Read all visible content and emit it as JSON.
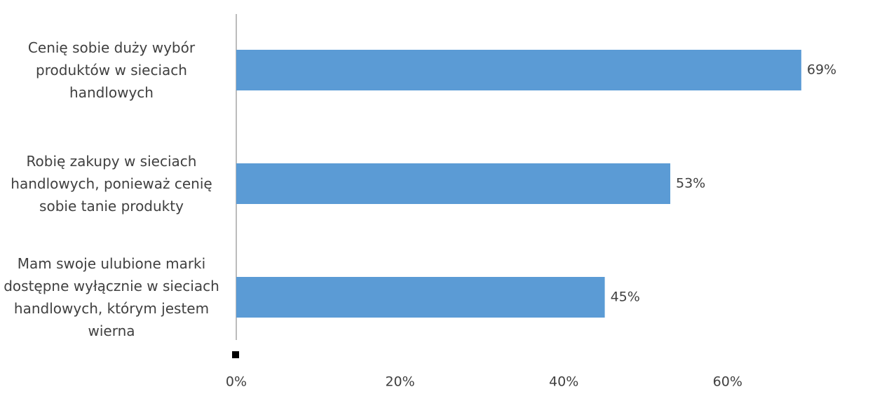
{
  "chart_data": {
    "type": "barh",
    "categories": [
      "Cenię sobie duży wybór produktów w sieciach handlowych",
      "Robię zakupy w sieciach handlowych, ponieważ cenię sobie tanie produkty",
      "Mam swoje ulubione marki dostępne wyłącznie w sieciach handlowych, którym jestem wierna"
    ],
    "values": [
      69,
      53,
      45
    ],
    "value_labels": [
      "69%",
      "53%",
      "45%"
    ],
    "color": "#5b9bd5",
    "xlim": [
      0,
      78
    ],
    "xticks": [
      {
        "value": 0,
        "label": "0%"
      },
      {
        "value": 20,
        "label": "20%"
      },
      {
        "value": 40,
        "label": "40%"
      },
      {
        "value": 60,
        "label": "60%"
      }
    ]
  }
}
